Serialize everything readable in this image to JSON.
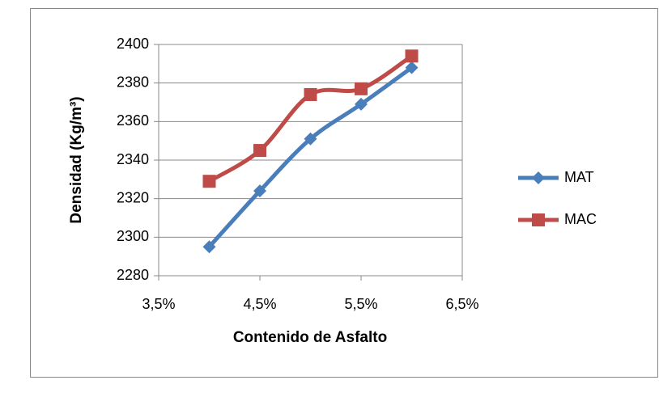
{
  "chart_data": {
    "type": "line",
    "x": [
      4,
      4.5,
      5,
      5.5,
      6
    ],
    "series": [
      {
        "name": "MAT",
        "color": "#4a7ebb",
        "marker": "diamond",
        "values": [
          2295,
          2324,
          2351,
          2369,
          2388
        ]
      },
      {
        "name": "MAC",
        "color": "#be4b48",
        "marker": "square",
        "values": [
          2329,
          2345,
          2374,
          2377,
          2394
        ]
      }
    ],
    "xlabel": "Contenido de Asfalto",
    "ylabel": "Densidad (Kg/m³)",
    "xlim": [
      3.5,
      6.5
    ],
    "xticks": [
      {
        "value": 3.5,
        "label": "3,5%"
      },
      {
        "value": 4.5,
        "label": "4,5%"
      },
      {
        "value": 5.5,
        "label": "5,5%"
      },
      {
        "value": 6.5,
        "label": "6,5%"
      }
    ],
    "ylim": [
      2280,
      2400
    ],
    "yticks": [
      2280,
      2300,
      2320,
      2340,
      2360,
      2380,
      2400
    ],
    "grid": true,
    "smooth": true,
    "legend": "right"
  }
}
